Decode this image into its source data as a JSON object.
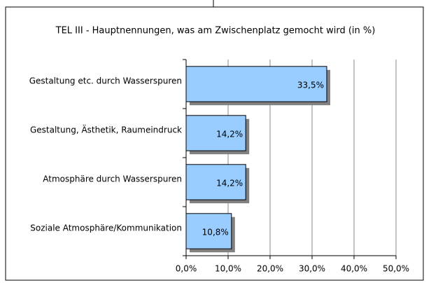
{
  "chart_data": {
    "type": "bar",
    "orientation": "horizontal",
    "title": "TEL III - Hauptnennungen, was am Zwischenplatz gemocht wird (in %)",
    "categories": [
      "Gestaltung etc. durch Wasserspuren",
      "Gestaltung, Ästhetik, Raumeindruck",
      "Atmosphäre durch Wasserspuren",
      "Soziale Atmosphäre/Kommunikation"
    ],
    "values": [
      33.5,
      14.2,
      14.2,
      10.8
    ],
    "value_labels": [
      "33,5%",
      "14,2%",
      "14,2%",
      "10,8%"
    ],
    "color": "#99ccff",
    "xlim": [
      0,
      50
    ],
    "xticks": [
      {
        "value": 0,
        "label": "0,0%"
      },
      {
        "value": 10,
        "label": "10,0%"
      },
      {
        "value": 20,
        "label": "20,0%"
      },
      {
        "value": 30,
        "label": "30,0%"
      },
      {
        "value": 40,
        "label": "40,0%"
      },
      {
        "value": 50,
        "label": "50,0%"
      }
    ],
    "grid": true
  }
}
